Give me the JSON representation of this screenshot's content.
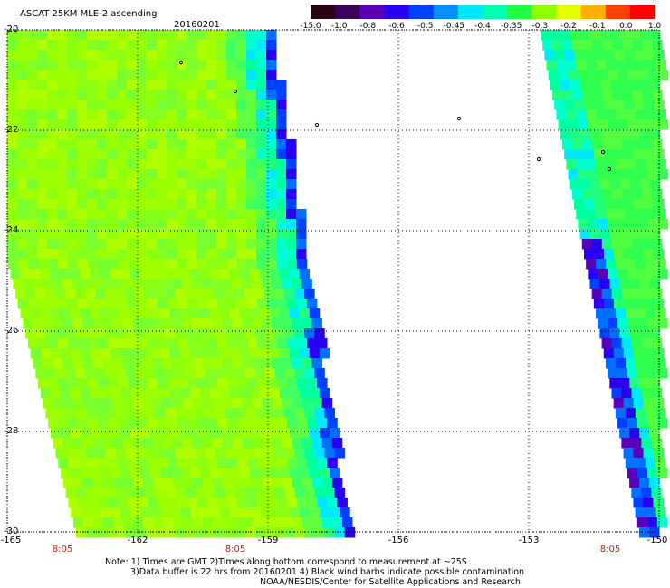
{
  "header": {
    "title": "ASCAT 25KM MLE-2 ascending",
    "date": "20160201"
  },
  "colorbar": {
    "labels": [
      "-15.0",
      "-1.0",
      "-0.8",
      "-0.6",
      "-0.5",
      "-0.45",
      "-0.4",
      "-0.35",
      "-0.3",
      "-0.2",
      "-0.1",
      "0.0",
      "1.0"
    ],
    "colors": [
      "#2a0012",
      "#3a0058",
      "#5a00b8",
      "#2a00f0",
      "#0040ff",
      "#0090ff",
      "#00e8ff",
      "#00ffb0",
      "#20ff40",
      "#90ff00",
      "#e8ff00",
      "#ffb000",
      "#ff4000",
      "#ff0000"
    ]
  },
  "axes": {
    "lat_labels": [
      "-20",
      "-22",
      "-24",
      "-26",
      "-28",
      "-30"
    ],
    "lon_labels": [
      "-165",
      "-162",
      "-159",
      "-156",
      "-153",
      "-150"
    ],
    "time_labels": [
      "8:05",
      "8:05",
      "8:05"
    ]
  },
  "notes": {
    "line1": "Note: 1) Times are GMT 2)Times along bottom correspond to measurement at ~25S",
    "line2": "3)Data buffer is 22 hrs from 20160201 4) Black wind barbs indicate possible contamination",
    "line3": "NOAA/NESDIS/Center for Satellite Applications and Research"
  }
}
